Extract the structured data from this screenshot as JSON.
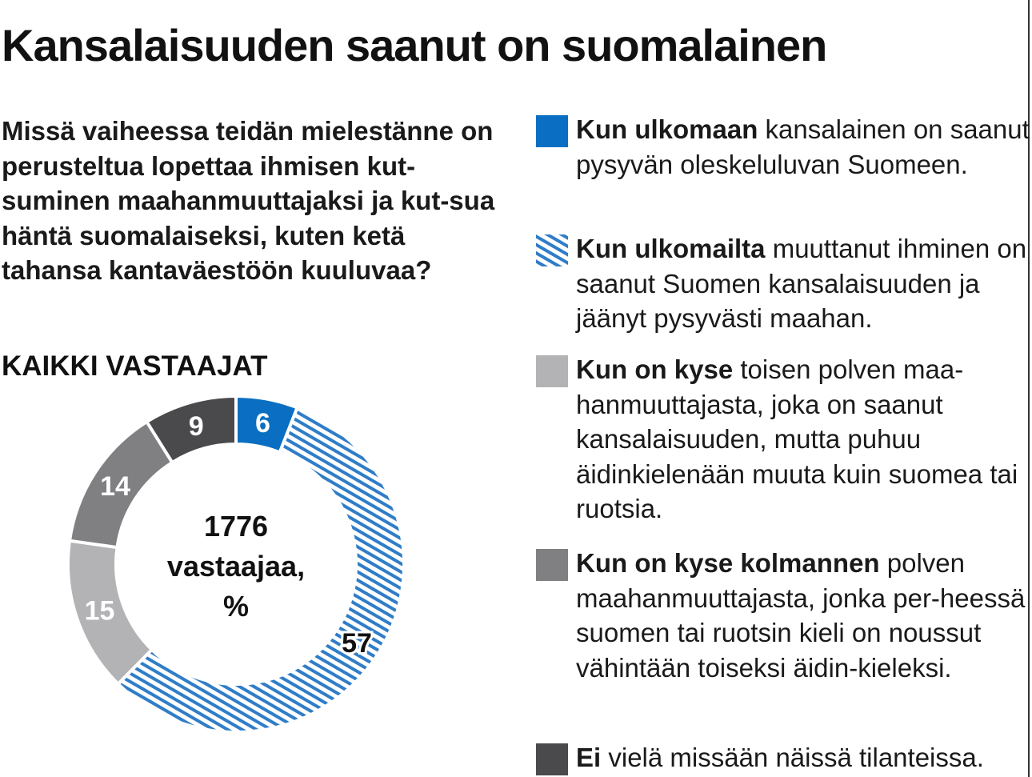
{
  "title": "Kansalaisuuden saanut on suomalainen",
  "question": "Missä vaiheessa teidän mielestänne on perusteltua lopettaa ihmisen kut-suminen maahanmuuttajaksi ja kut-sua häntä suomalaiseksi, kuten ketä tahansa kantaväestöön kuuluvaa?",
  "subtitle": "KAIKKI VASTAAJAT",
  "center_label": {
    "line1": "1776",
    "line2": "vastaajaa,",
    "line3": "%"
  },
  "colors": {
    "blue": "#0a6fc2",
    "hatch": "#2f7dc8",
    "light_grey": "#b3b3b5",
    "mid_grey": "#808083",
    "dark_grey": "#4a4a4c"
  },
  "legend": [
    {
      "bold": "Kun ulkomaan",
      "rest": " kansalainen on saanut pysyvän oleskeluluvan Suomeen.",
      "swatch": "blue"
    },
    {
      "bold": "Kun ulkomailta",
      "rest": " muuttanut ihminen on saanut Suomen kansalaisuuden ja jäänyt pysyvästi maahan.",
      "swatch": "hatch"
    },
    {
      "bold": "Kun on kyse",
      "rest": " toisen polven maa-hanmuuttajasta, joka on saanut kansalaisuuden, mutta puhuu äidinkielenään muuta kuin suomea tai ruotsia.",
      "swatch": "light_grey"
    },
    {
      "bold": "Kun on kyse kolmannen",
      "rest": " polven maahanmuuttajasta, jonka per-heessä suomen tai ruotsin kieli on noussut vähintään toiseksi äidin-kieleksi.",
      "swatch": "mid_grey"
    },
    {
      "bold": "Ei",
      "rest": " vielä missään näissä tilanteissa.",
      "swatch": "dark_grey"
    }
  ],
  "chart_data": {
    "type": "pie",
    "donut": true,
    "categories": [
      "6",
      "57",
      "15",
      "14",
      "9"
    ],
    "values": [
      6,
      57,
      15,
      14,
      9
    ],
    "colors": [
      "blue",
      "hatch",
      "light_grey",
      "mid_grey",
      "dark_grey"
    ],
    "title": "KAIKKI VASTAAJAT",
    "legend": "right"
  }
}
